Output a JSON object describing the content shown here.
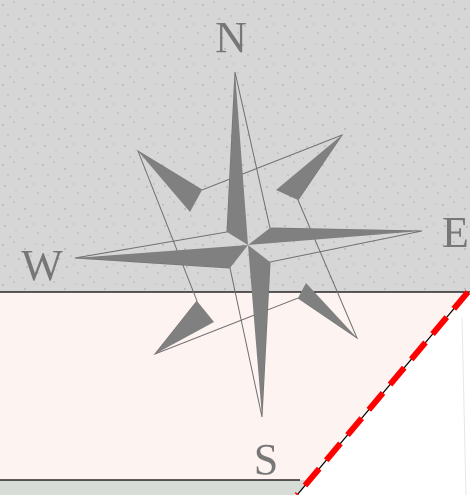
{
  "map": {
    "land_color": "#d6d6d6",
    "land_speckle_color": "#9a9a9a",
    "zone_color": "#fdf3f1",
    "strip_color": "#d7dcd6",
    "open_area_color": "#ffffff",
    "boundary_color": "#ff0000"
  },
  "compass": {
    "labels": {
      "north": "N",
      "south": "S",
      "east": "E",
      "west": "W"
    },
    "fill_color": "#808080",
    "outline_color": "#6f6f6f"
  }
}
